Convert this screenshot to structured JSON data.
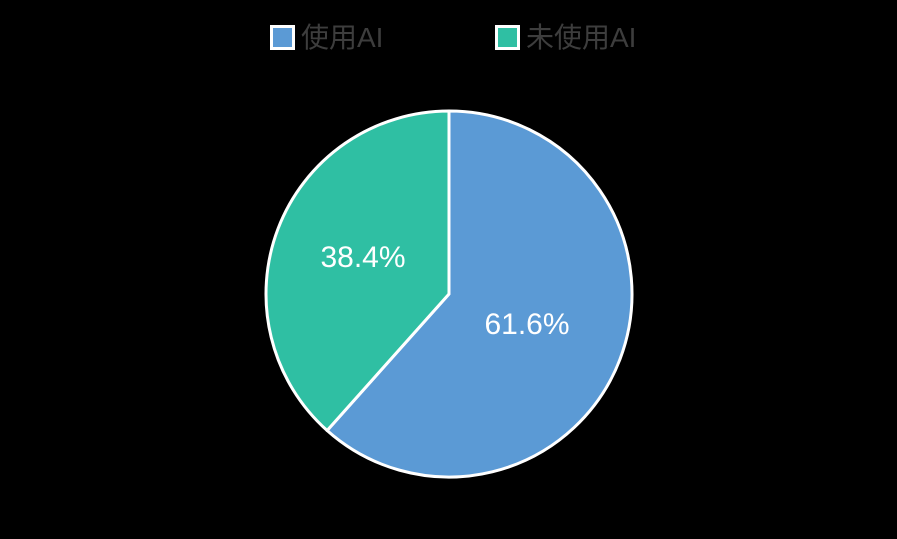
{
  "background_color": "#000000",
  "legend": {
    "items": [
      {
        "label": "使用AI",
        "color": "#5B9AD5"
      },
      {
        "label": "未使用AI",
        "color": "#2FBFA3"
      }
    ]
  },
  "chart_data": {
    "type": "pie",
    "title": "",
    "categories": [
      "使用AI",
      "未使用AI"
    ],
    "values": [
      61.6,
      38.4
    ],
    "slice_labels": [
      "61.6%",
      "38.4%"
    ],
    "colors": [
      "#5B9AD5",
      "#2FBFA3"
    ],
    "slice_border_color": "#ffffff",
    "label_color": "#ffffff",
    "legend_position": "top",
    "start_angle": "12 o'clock",
    "direction": "clockwise"
  }
}
